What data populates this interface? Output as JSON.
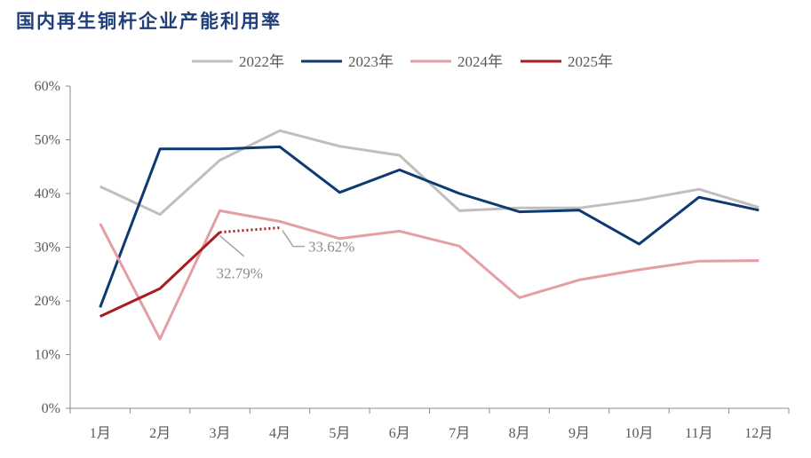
{
  "title": "国内再生铜杆企业产能利用率",
  "chart_data": {
    "type": "line",
    "categories": [
      "1月",
      "2月",
      "3月",
      "4月",
      "5月",
      "6月",
      "7月",
      "8月",
      "9月",
      "10月",
      "11月",
      "12月"
    ],
    "ylim": [
      0,
      60
    ],
    "yticks": [
      0,
      10,
      20,
      30,
      40,
      50,
      60
    ],
    "ytick_labels": [
      "0%",
      "10%",
      "20%",
      "30%",
      "40%",
      "50%",
      "60%"
    ],
    "grid": false,
    "legend_position": "top-center",
    "series": [
      {
        "name": "2022年",
        "color": "#bfbfbf",
        "dash": false,
        "values": [
          41.3,
          36.1,
          46.2,
          51.7,
          48.8,
          47.1,
          36.8,
          37.3,
          37.3,
          38.8,
          40.8,
          37.4
        ]
      },
      {
        "name": "2023年",
        "color": "#0e3a73",
        "dash": false,
        "values": [
          18.8,
          48.3,
          48.3,
          48.7,
          40.2,
          44.4,
          40.0,
          36.6,
          36.9,
          30.6,
          39.3,
          36.9
        ]
      },
      {
        "name": "2024年",
        "color": "#e59ea4",
        "dash": false,
        "values": [
          34.4,
          12.9,
          36.8,
          34.8,
          31.6,
          33.0,
          30.2,
          20.6,
          23.9,
          25.8,
          27.4,
          27.5
        ]
      },
      {
        "name": "2025年",
        "color": "#a61e22",
        "dash": false,
        "values": [
          17.1,
          22.3,
          32.79,
          null,
          null,
          null,
          null,
          null,
          null,
          null,
          null,
          null
        ]
      }
    ],
    "projection": {
      "series": "2025年",
      "color": "#a61e22",
      "from_index": 2,
      "to_index": 3,
      "values": [
        32.79,
        33.62
      ]
    },
    "annotations": [
      {
        "text": "32.79%",
        "index": 2,
        "value": 32.79
      },
      {
        "text": "33.62%",
        "index": 3,
        "value": 33.62
      }
    ]
  }
}
